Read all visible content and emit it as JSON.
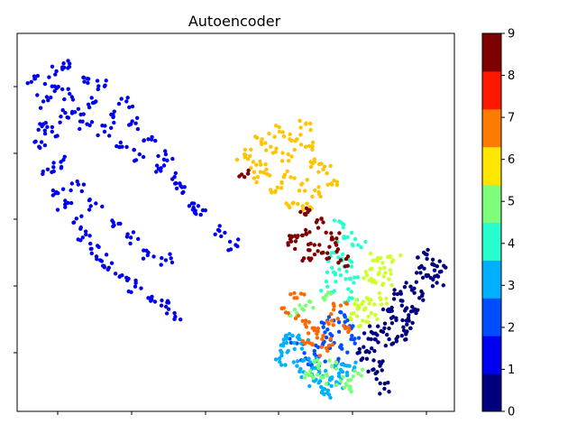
{
  "chart_data": {
    "type": "scatter",
    "title": "Autoencoder",
    "xlabel": "",
    "ylabel": "",
    "x_tick_labels_shown": false,
    "y_tick_labels_shown": false,
    "grid": false,
    "legend": "colorbar-right",
    "colormap": "jet",
    "colorbar": {
      "min": 0,
      "max": 9,
      "ticks": [
        "0",
        "1",
        "2",
        "3",
        "4",
        "5",
        "6",
        "7",
        "8",
        "9"
      ],
      "colors": [
        "#00007f",
        "#0000f1",
        "#004cff",
        "#00b0ff",
        "#29ffce",
        "#7dff7a",
        "#ceff29",
        "#ffc400",
        "#ff6800",
        "#f10800",
        "#7f0000"
      ]
    },
    "series": [
      {
        "label_value": 0,
        "color": "#00007f",
        "points": [
          [
            0.92,
            0.3
          ],
          [
            0.9,
            0.33
          ],
          [
            0.94,
            0.36
          ],
          [
            0.88,
            0.28
          ],
          [
            0.86,
            0.25
          ],
          [
            0.84,
            0.22
          ],
          [
            0.82,
            0.19
          ],
          [
            0.8,
            0.16
          ],
          [
            0.83,
            0.12
          ],
          [
            0.86,
            0.18
          ],
          [
            0.89,
            0.24
          ],
          [
            0.91,
            0.27
          ],
          [
            0.95,
            0.39
          ],
          [
            0.93,
            0.42
          ],
          [
            0.96,
            0.34
          ],
          [
            0.87,
            0.31
          ],
          [
            0.85,
            0.27
          ],
          [
            0.81,
            0.21
          ],
          [
            0.79,
            0.14
          ],
          [
            0.82,
            0.1
          ],
          [
            0.84,
            0.06
          ],
          [
            0.88,
            0.2
          ],
          [
            0.9,
            0.22
          ],
          [
            0.92,
            0.38
          ],
          [
            0.97,
            0.37
          ]
        ]
      },
      {
        "label_value": 1,
        "color": "#0000f1",
        "points": [
          [
            0.04,
            0.88
          ],
          [
            0.06,
            0.82
          ],
          [
            0.08,
            0.86
          ],
          [
            0.1,
            0.78
          ],
          [
            0.12,
            0.84
          ],
          [
            0.14,
            0.8
          ],
          [
            0.16,
            0.76
          ],
          [
            0.18,
            0.82
          ],
          [
            0.2,
            0.74
          ],
          [
            0.22,
            0.78
          ],
          [
            0.24,
            0.7
          ],
          [
            0.26,
            0.76
          ],
          [
            0.28,
            0.68
          ],
          [
            0.3,
            0.72
          ],
          [
            0.32,
            0.65
          ],
          [
            0.34,
            0.68
          ],
          [
            0.36,
            0.62
          ],
          [
            0.38,
            0.58
          ],
          [
            0.4,
            0.55
          ],
          [
            0.42,
            0.52
          ],
          [
            0.05,
            0.7
          ],
          [
            0.07,
            0.64
          ],
          [
            0.09,
            0.58
          ],
          [
            0.11,
            0.54
          ],
          [
            0.13,
            0.5
          ],
          [
            0.15,
            0.46
          ],
          [
            0.17,
            0.43
          ],
          [
            0.19,
            0.4
          ],
          [
            0.21,
            0.38
          ],
          [
            0.24,
            0.36
          ],
          [
            0.27,
            0.33
          ],
          [
            0.3,
            0.3
          ],
          [
            0.33,
            0.28
          ],
          [
            0.36,
            0.26
          ],
          [
            0.12,
            0.92
          ],
          [
            0.16,
            0.88
          ],
          [
            0.2,
            0.86
          ],
          [
            0.25,
            0.82
          ],
          [
            0.08,
            0.74
          ],
          [
            0.1,
            0.66
          ],
          [
            0.14,
            0.6
          ],
          [
            0.18,
            0.55
          ],
          [
            0.22,
            0.5
          ],
          [
            0.26,
            0.46
          ],
          [
            0.3,
            0.42
          ],
          [
            0.34,
            0.4
          ],
          [
            0.46,
            0.48
          ],
          [
            0.5,
            0.44
          ],
          [
            0.06,
            0.76
          ],
          [
            0.09,
            0.9
          ]
        ]
      },
      {
        "label_value": 2,
        "color": "#004cff",
        "points": [
          [
            0.68,
            0.16
          ],
          [
            0.7,
            0.18
          ],
          [
            0.72,
            0.2
          ],
          [
            0.74,
            0.17
          ],
          [
            0.76,
            0.22
          ],
          [
            0.66,
            0.14
          ],
          [
            0.69,
            0.12
          ],
          [
            0.73,
            0.13
          ],
          [
            0.77,
            0.19
          ],
          [
            0.71,
            0.24
          ],
          [
            0.64,
            0.18
          ],
          [
            0.75,
            0.25
          ]
        ]
      },
      {
        "label_value": 3,
        "color": "#00b0ff",
        "points": [
          [
            0.62,
            0.16
          ],
          [
            0.64,
            0.12
          ],
          [
            0.66,
            0.1
          ],
          [
            0.68,
            0.08
          ],
          [
            0.7,
            0.06
          ],
          [
            0.72,
            0.09
          ],
          [
            0.74,
            0.11
          ],
          [
            0.63,
            0.2
          ],
          [
            0.65,
            0.18
          ],
          [
            0.67,
            0.13
          ],
          [
            0.69,
            0.1
          ],
          [
            0.71,
            0.05
          ],
          [
            0.6,
            0.14
          ],
          [
            0.73,
            0.07
          ],
          [
            0.61,
            0.19
          ],
          [
            0.76,
            0.12
          ]
        ]
      },
      {
        "label_value": 4,
        "color": "#29ffce",
        "points": [
          [
            0.74,
            0.36
          ],
          [
            0.76,
            0.4
          ],
          [
            0.75,
            0.46
          ],
          [
            0.73,
            0.42
          ],
          [
            0.77,
            0.34
          ],
          [
            0.72,
            0.38
          ],
          [
            0.78,
            0.44
          ],
          [
            0.74,
            0.5
          ],
          [
            0.76,
            0.3
          ],
          [
            0.71,
            0.33
          ]
        ]
      },
      {
        "label_value": 5,
        "color": "#7dff7a",
        "points": [
          [
            0.66,
            0.1
          ],
          [
            0.68,
            0.13
          ],
          [
            0.7,
            0.09
          ],
          [
            0.72,
            0.12
          ],
          [
            0.74,
            0.08
          ],
          [
            0.64,
            0.26
          ],
          [
            0.66,
            0.28
          ],
          [
            0.7,
            0.3
          ],
          [
            0.76,
            0.06
          ],
          [
            0.78,
            0.1
          ]
        ]
      },
      {
        "label_value": 6,
        "color": "#ceff29",
        "points": [
          [
            0.78,
            0.28
          ],
          [
            0.8,
            0.3
          ],
          [
            0.82,
            0.34
          ],
          [
            0.84,
            0.38
          ],
          [
            0.86,
            0.4
          ],
          [
            0.79,
            0.24
          ],
          [
            0.81,
            0.26
          ],
          [
            0.83,
            0.3
          ],
          [
            0.85,
            0.35
          ],
          [
            0.8,
            0.36
          ],
          [
            0.82,
            0.4
          ],
          [
            0.77,
            0.26
          ]
        ]
      },
      {
        "label_value": 7,
        "color": "#ffc400",
        "points": [
          [
            0.56,
            0.72
          ],
          [
            0.58,
            0.7
          ],
          [
            0.6,
            0.74
          ],
          [
            0.62,
            0.68
          ],
          [
            0.64,
            0.72
          ],
          [
            0.66,
            0.7
          ],
          [
            0.68,
            0.66
          ],
          [
            0.54,
            0.66
          ],
          [
            0.57,
            0.64
          ],
          [
            0.61,
            0.62
          ],
          [
            0.65,
            0.6
          ],
          [
            0.69,
            0.58
          ],
          [
            0.63,
            0.55
          ],
          [
            0.67,
            0.54
          ],
          [
            0.7,
            0.64
          ],
          [
            0.52,
            0.68
          ],
          [
            0.59,
            0.58
          ],
          [
            0.66,
            0.76
          ],
          [
            0.72,
            0.6
          ],
          [
            0.55,
            0.62
          ]
        ]
      },
      {
        "label_value": 8,
        "color": "#ff6800",
        "points": [
          [
            0.64,
            0.3
          ],
          [
            0.66,
            0.24
          ],
          [
            0.68,
            0.22
          ],
          [
            0.7,
            0.2
          ],
          [
            0.72,
            0.24
          ],
          [
            0.74,
            0.28
          ],
          [
            0.62,
            0.26
          ],
          [
            0.67,
            0.18
          ],
          [
            0.71,
            0.16
          ],
          [
            0.75,
            0.22
          ]
        ]
      },
      {
        "label_value": 9,
        "color": "#7f0000",
        "points": [
          [
            0.64,
            0.46
          ],
          [
            0.66,
            0.48
          ],
          [
            0.68,
            0.44
          ],
          [
            0.7,
            0.42
          ],
          [
            0.72,
            0.46
          ],
          [
            0.74,
            0.4
          ],
          [
            0.66,
            0.52
          ],
          [
            0.7,
            0.5
          ],
          [
            0.73,
            0.44
          ],
          [
            0.67,
            0.4
          ],
          [
            0.52,
            0.62
          ],
          [
            0.62,
            0.44
          ]
        ]
      }
    ]
  }
}
